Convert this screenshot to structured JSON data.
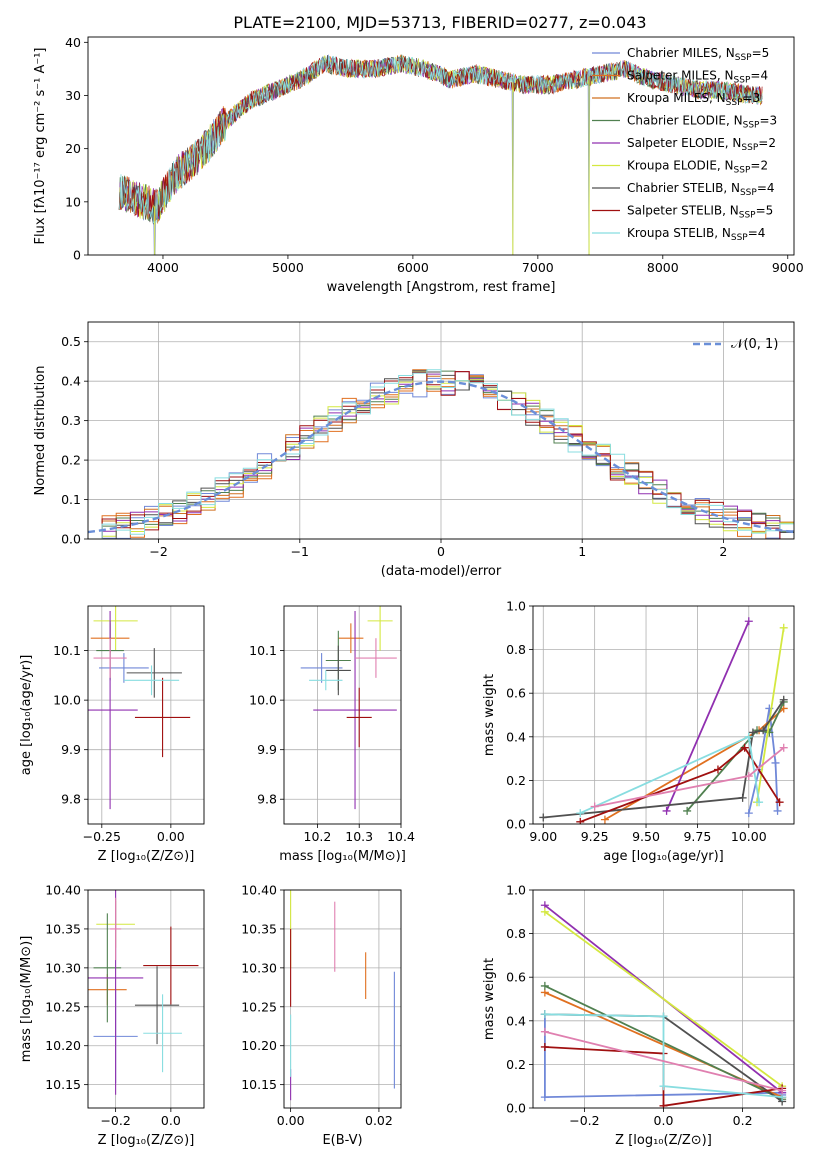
{
  "figure_title": "PLATE=2100, MJD=53713, FIBERID=0277, z=0.043",
  "colors": [
    "#7088d8",
    "#e07020",
    "#508050",
    "#9030b0",
    "#d4e840",
    "#505050",
    "#a01010",
    "#88dde0",
    "#e080b0"
  ],
  "legend_entries": [
    {
      "name": "Chabrier MILES, N",
      "sub": "SSP",
      "tail": "=5",
      "color": "#7088d8"
    },
    {
      "name": "Salpeter MILES, N",
      "sub": "SSP",
      "tail": "=4",
      "color": "#e07020"
    },
    {
      "name": "Kroupa MILES, N",
      "sub": "SSP",
      "tail": "=3",
      "color": "#d07020"
    },
    {
      "name": "Chabrier ELODIE, N",
      "sub": "SSP",
      "tail": "=3",
      "color": "#508050"
    },
    {
      "name": "Salpeter ELODIE, N",
      "sub": "SSP",
      "tail": "=2",
      "color": "#9030b0"
    },
    {
      "name": "Kroupa ELODIE, N",
      "sub": "SSP",
      "tail": "=2",
      "color": "#d4e840"
    },
    {
      "name": "Chabrier STELIB, N",
      "sub": "SSP",
      "tail": "=4",
      "color": "#505050"
    },
    {
      "name": "Salpeter STELIB, N",
      "sub": "SSP",
      "tail": "=5",
      "color": "#a01010"
    },
    {
      "name": "Kroupa STELIB, N",
      "sub": "SSP",
      "tail": "=4",
      "color": "#88dde0"
    }
  ],
  "chart_data": [
    {
      "id": "spectrum",
      "type": "line",
      "xlabel": "wavelength [Angstrom, rest frame]",
      "ylabel": "Flux [fλ10⁻¹⁷ erg cm⁻² s⁻¹ A⁻¹]",
      "xlim": [
        3400,
        9050
      ],
      "ylim": [
        0,
        41
      ],
      "xticks": [
        4000,
        5000,
        6000,
        7000,
        8000,
        9000
      ],
      "yticks": [
        0,
        10,
        20,
        30,
        40
      ],
      "continuum": {
        "x": [
          3650,
          3750,
          3850,
          3950,
          4100,
          4300,
          4500,
          4700,
          4900,
          5100,
          5300,
          5500,
          5700,
          5900,
          6100,
          6300,
          6500,
          6700,
          6900,
          7100,
          7300,
          7500,
          7700,
          7900,
          8100,
          8300,
          8500,
          8700,
          8800
        ],
        "y": [
          12,
          11,
          10,
          9,
          15,
          19,
          25,
          29,
          31,
          33,
          36,
          35,
          35,
          36,
          35,
          33,
          34,
          33,
          32,
          32,
          33,
          34,
          35,
          33,
          32,
          31,
          31,
          30,
          30
        ]
      },
      "dips": [
        {
          "x": 3934,
          "y": 0
        },
        {
          "x": 6800,
          "y": 0
        },
        {
          "x": 7410,
          "y": 0
        }
      ]
    },
    {
      "id": "residuals",
      "type": "histogram",
      "xlabel": "(data-model)/error",
      "ylabel": "Normed distribution",
      "xlim": [
        -2.5,
        2.5
      ],
      "ylim": [
        0,
        0.55
      ],
      "xticks": [
        -2,
        -1,
        0,
        1,
        2
      ],
      "yticks": [
        0.0,
        0.1,
        0.2,
        0.3,
        0.4,
        0.5
      ],
      "bin_width": 0.1,
      "reference_label": "𝒩(0, 1)",
      "reference": "normal(0,1)"
    },
    {
      "id": "age-vs-Z",
      "type": "errorbar",
      "xlabel": "Z [log₁₀(Z/Z⊙)]",
      "ylabel": "age  [log₁₀(age/yr)]",
      "xlim": [
        -0.3,
        0.12
      ],
      "ylim": [
        9.75,
        10.19
      ],
      "xticks": [
        -0.25,
        0.0
      ],
      "yticks": [
        9.8,
        9.9,
        10.0,
        10.1
      ],
      "points": [
        {
          "x": -0.17,
          "y": 10.065,
          "xerr": 0.09,
          "yerr": 0.03,
          "c": 0
        },
        {
          "x": -0.22,
          "y": 10.125,
          "xerr": 0.07,
          "yerr": 0.03,
          "c": 1
        },
        {
          "x": -0.2,
          "y": 10.16,
          "xerr": 0.08,
          "yerr": 0.06,
          "c": 4
        },
        {
          "x": -0.22,
          "y": 10.1,
          "xerr": 0.05,
          "yerr": 0.06,
          "c": 2
        },
        {
          "x": -0.22,
          "y": 9.98,
          "xerr": 0.1,
          "yerr": 0.2,
          "c": 3
        },
        {
          "x": -0.06,
          "y": 10.055,
          "xerr": 0.1,
          "yerr": 0.05,
          "c": 5
        },
        {
          "x": -0.03,
          "y": 9.965,
          "xerr": 0.1,
          "yerr": 0.08,
          "c": 6
        },
        {
          "x": -0.07,
          "y": 10.04,
          "xerr": 0.1,
          "yerr": 0.03,
          "c": 7
        },
        {
          "x": -0.22,
          "y": 10.085,
          "xerr": 0.06,
          "yerr": 0.04,
          "c": 8
        }
      ]
    },
    {
      "id": "age-vs-mass",
      "type": "errorbar",
      "xlabel": "mass [log₁₀(M/M⊙)]",
      "ylabel": "",
      "xlim": [
        10.12,
        10.4
      ],
      "ylim": [
        9.75,
        10.19
      ],
      "xticks": [
        10.2,
        10.3,
        10.4
      ],
      "yticks": [
        9.8,
        9.9,
        10.0,
        10.1
      ],
      "points": [
        {
          "x": 10.21,
          "y": 10.065,
          "xerr": 0.05,
          "yerr": 0.03,
          "c": 0
        },
        {
          "x": 10.28,
          "y": 10.125,
          "xerr": 0.03,
          "yerr": 0.03,
          "c": 1
        },
        {
          "x": 10.35,
          "y": 10.16,
          "xerr": 0.03,
          "yerr": 0.06,
          "c": 4
        },
        {
          "x": 10.25,
          "y": 10.08,
          "xerr": 0.03,
          "yerr": 0.06,
          "c": 2
        },
        {
          "x": 10.29,
          "y": 9.98,
          "xerr": 0.1,
          "yerr": 0.2,
          "c": 3
        },
        {
          "x": 10.25,
          "y": 10.06,
          "xerr": 0.03,
          "yerr": 0.05,
          "c": 5
        },
        {
          "x": 10.3,
          "y": 9.965,
          "xerr": 0.03,
          "yerr": 0.06,
          "c": 6
        },
        {
          "x": 10.22,
          "y": 10.04,
          "xerr": 0.04,
          "yerr": 0.02,
          "c": 7
        },
        {
          "x": 10.34,
          "y": 10.085,
          "xerr": 0.05,
          "yerr": 0.04,
          "c": 8
        }
      ]
    },
    {
      "id": "weight-vs-age",
      "type": "line",
      "xlabel": "age  [log₁₀(age/yr)]",
      "ylabel": "mass weight",
      "xlim": [
        8.95,
        10.22
      ],
      "ylim": [
        0,
        1
      ],
      "xticks": [
        9.0,
        9.25,
        9.5,
        9.75,
        10.0
      ],
      "yticks": [
        0.0,
        0.2,
        0.4,
        0.6,
        0.8,
        1.0
      ],
      "series": [
        {
          "c": 0,
          "x": [
            10.0,
            10.05,
            10.1,
            10.13,
            10.14
          ],
          "y": [
            0.05,
            0.25,
            0.53,
            0.28,
            0.06
          ]
        },
        {
          "c": 1,
          "x": [
            9.3,
            10.05,
            10.17
          ],
          "y": [
            0.02,
            0.43,
            0.53
          ]
        },
        {
          "c": 2,
          "x": [
            9.7,
            10.04,
            10.1,
            10.17
          ],
          "y": [
            0.06,
            0.43,
            0.42,
            0.56
          ]
        },
        {
          "c": 3,
          "x": [
            9.6,
            10.0
          ],
          "y": [
            0.06,
            0.93
          ]
        },
        {
          "c": 4,
          "x": [
            10.04,
            10.17
          ],
          "y": [
            0.1,
            0.9
          ]
        },
        {
          "c": 5,
          "x": [
            9.0,
            9.97,
            10.02,
            10.07,
            10.17
          ],
          "y": [
            0.03,
            0.12,
            0.42,
            0.43,
            0.57
          ]
        },
        {
          "c": 6,
          "x": [
            9.18,
            9.85,
            9.98,
            10.15
          ],
          "y": [
            0.01,
            0.25,
            0.35,
            0.1
          ]
        },
        {
          "c": 7,
          "x": [
            9.18,
            10.0,
            10.05
          ],
          "y": [
            0.05,
            0.4,
            0.1
          ]
        },
        {
          "c": 8,
          "x": [
            9.25,
            10.0,
            10.17
          ],
          "y": [
            0.08,
            0.22,
            0.35
          ]
        }
      ]
    },
    {
      "id": "mass-vs-Z",
      "type": "errorbar",
      "xlabel": "Z [log₁₀(Z/Z⊙)]",
      "ylabel": "mass [log₁₀(M/M⊙)]",
      "xlim": [
        -0.3,
        0.12
      ],
      "ylim": [
        10.12,
        10.4
      ],
      "xticks": [
        -0.2,
        0.0
      ],
      "yticks": [
        10.15,
        10.2,
        10.25,
        10.3,
        10.35,
        10.4
      ],
      "points": [
        {
          "x": -0.2,
          "y": 10.212,
          "xerr": 0.08,
          "yerr": 0.06,
          "c": 0
        },
        {
          "x": -0.23,
          "y": 10.272,
          "xerr": 0.07,
          "yerr": 0.02,
          "c": 1
        },
        {
          "x": -0.2,
          "y": 10.356,
          "xerr": 0.07,
          "yerr": 0.03,
          "c": 4
        },
        {
          "x": -0.23,
          "y": 10.3,
          "xerr": 0.05,
          "yerr": 0.07,
          "c": 2
        },
        {
          "x": -0.2,
          "y": 10.287,
          "xerr": 0.1,
          "yerr": 0.15,
          "c": 3
        },
        {
          "x": -0.05,
          "y": 10.252,
          "xerr": 0.08,
          "yerr": 0.05,
          "c": 5
        },
        {
          "x": 0.0,
          "y": 10.303,
          "xerr": 0.1,
          "yerr": 0.05,
          "c": 6
        },
        {
          "x": -0.03,
          "y": 10.216,
          "xerr": 0.07,
          "yerr": 0.05,
          "c": 7
        },
        {
          "x": -0.2,
          "y": 10.35,
          "xerr": 0.02,
          "yerr": 0.04,
          "c": 8
        }
      ]
    },
    {
      "id": "mass-vs-EBV",
      "type": "errorbar",
      "xlabel": "E(B-V)",
      "ylabel": "",
      "xlim": [
        -0.0015,
        0.025
      ],
      "ylim": [
        10.12,
        10.4
      ],
      "xticks": [
        0.0,
        0.02
      ],
      "yticks": [
        10.15,
        10.2,
        10.25,
        10.3,
        10.35,
        10.4
      ],
      "points": [
        {
          "x": 0.0,
          "y": 10.35,
          "xerr": 0,
          "yerr": 0.05,
          "c": 4
        },
        {
          "x": 0.0,
          "y": 10.3,
          "xerr": 0,
          "yerr": 0.05,
          "c": 6
        },
        {
          "x": 0.0,
          "y": 10.15,
          "xerr": 0,
          "yerr": 0.02,
          "c": 3
        },
        {
          "x": 0.0,
          "y": 10.2,
          "xerr": 0,
          "yerr": 0.04,
          "c": 7
        },
        {
          "x": 0.01,
          "y": 10.34,
          "xerr": 0,
          "yerr": 0.045,
          "c": 8
        },
        {
          "x": 0.017,
          "y": 10.29,
          "xerr": 0,
          "yerr": 0.03,
          "c": 1
        },
        {
          "x": 0.0235,
          "y": 10.22,
          "xerr": 0,
          "yerr": 0.075,
          "c": 0
        }
      ]
    },
    {
      "id": "weight-vs-Z",
      "type": "line",
      "xlabel": "Z [log₁₀(Z/Z⊙)]",
      "ylabel": "mass weight",
      "xlim": [
        -0.33,
        0.33
      ],
      "ylim": [
        0,
        1
      ],
      "xticks": [
        -0.2,
        0.0,
        0.2
      ],
      "yticks": [
        0.0,
        0.2,
        0.4,
        0.6,
        0.8,
        1.0
      ],
      "series": [
        {
          "c": 0,
          "x": [
            -0.3,
            -0.3,
            0.3,
            0.3,
            0.3
          ],
          "y": [
            0.43,
            0.05,
            0.07,
            0.05,
            0.06
          ]
        },
        {
          "c": 1,
          "x": [
            -0.3,
            0.3
          ],
          "y": [
            0.53,
            0.05
          ]
        },
        {
          "c": 2,
          "x": [
            -0.3,
            0.3
          ],
          "y": [
            0.56,
            0.04
          ]
        },
        {
          "c": 3,
          "x": [
            -0.3,
            0.3
          ],
          "y": [
            0.93,
            0.07
          ]
        },
        {
          "c": 4,
          "x": [
            -0.3,
            0.3
          ],
          "y": [
            0.9,
            0.1
          ]
        },
        {
          "c": 5,
          "x": [
            -0.3,
            0.0,
            0.3
          ],
          "y": [
            0.43,
            0.42,
            0.03
          ]
        },
        {
          "c": 6,
          "x": [
            -0.3,
            0.0,
            0.0,
            0.3
          ],
          "y": [
            0.28,
            0.25,
            0.01,
            0.09
          ]
        },
        {
          "c": 7,
          "x": [
            -0.3,
            0.0,
            0.0,
            0.3
          ],
          "y": [
            0.43,
            0.42,
            0.1,
            0.05
          ]
        },
        {
          "c": 8,
          "x": [
            -0.3,
            0.3
          ],
          "y": [
            0.35,
            0.08
          ]
        }
      ]
    }
  ]
}
